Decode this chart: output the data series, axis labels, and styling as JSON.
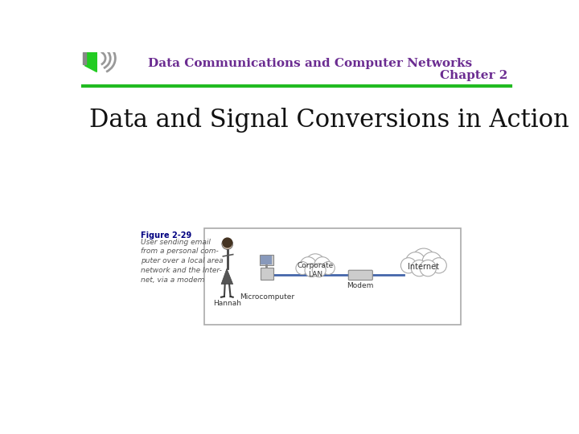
{
  "bg_color": "#ffffff",
  "header_line1": "Data Communications and Computer Networks",
  "header_line2": "Chapter 2",
  "header_text_color": "#6B2C91",
  "green_line_color": "#22bb22",
  "title_text": "Data and Signal Conversions in Action",
  "title_color": "#111111",
  "figure_label": "Figure 2-29",
  "figure_caption": "User sending email\nfrom a personal com-\nputer over a local area\nnetwork and the Inter-\nnet, via a modem",
  "figure_label_color": "#000080",
  "figure_caption_color": "#555555",
  "diagram_line_color": "#4466aa",
  "node_label_color": "#333333",
  "speaker_green": "#22cc22",
  "speaker_gray": "#999999"
}
